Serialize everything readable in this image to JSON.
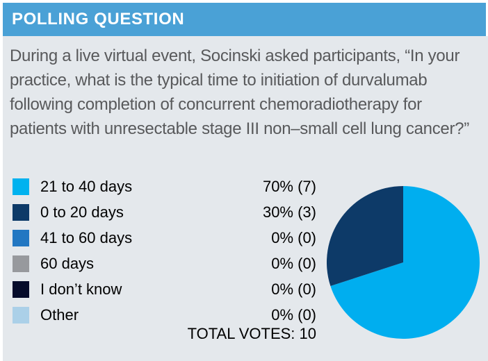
{
  "header": {
    "title": "POLLING QUESTION",
    "bg_color": "#4aa1d6",
    "text_color": "#ffffff"
  },
  "question": "During a live virtual event, Socinski asked participants, “In your practice, what is the typical time to initiation of durvalumab following completion of concurrent chemoradiotherapy for patients with unresectable stage III non–small cell lung cancer?”",
  "total_votes_label": "TOTAL VOTES: 10",
  "chart_data": {
    "type": "pie",
    "title": "",
    "categories": [
      "21 to 40 days",
      "0 to 20 days",
      "41 to 60 days",
      "60 days",
      "I don’t know",
      "Other"
    ],
    "values": [
      70,
      30,
      0,
      0,
      0,
      0
    ],
    "counts": [
      7,
      3,
      0,
      0,
      0,
      0
    ],
    "value_labels": [
      "70% (7)",
      "30% (3)",
      "0% (0)",
      "0% (0)",
      "0% (0)",
      "0% (0)"
    ],
    "colors": [
      "#00b2ef",
      "#0d3a68",
      "#2277c2",
      "#97999d",
      "#060c2b",
      "#abd0e8"
    ],
    "total_votes": 10,
    "start_angle_deg": 0,
    "direction": "clockwise",
    "legend_position": "left"
  },
  "colors": {
    "body_bg": "#e4e8ec",
    "page_bg": "#ffffff",
    "question_text": "#58595b",
    "label_text": "#000000"
  }
}
